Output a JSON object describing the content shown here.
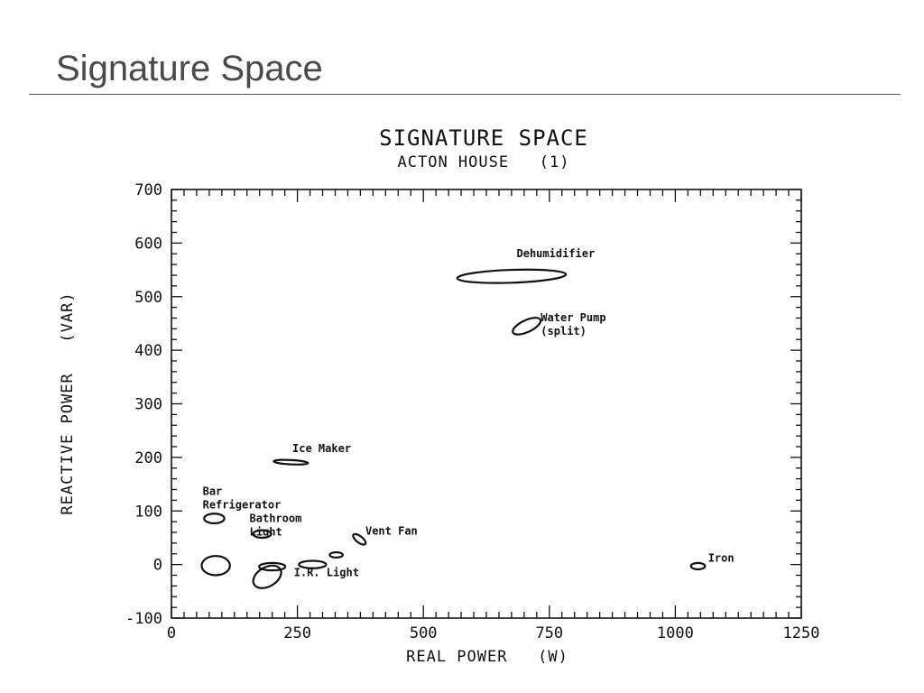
{
  "slide": {
    "title": "Signature Space"
  },
  "chart_data": {
    "type": "scatter",
    "title": "SIGNATURE SPACE",
    "subtitle": "ACTON HOUSE   (1)",
    "xlabel": "REAL POWER   (W)",
    "ylabel": "REACTIVE POWER   (VAR)",
    "xlim": [
      0,
      1250
    ],
    "ylim": [
      -100,
      700
    ],
    "xticks": [
      0,
      250,
      500,
      750,
      1000,
      1250
    ],
    "yticks": [
      -100,
      0,
      100,
      200,
      300,
      400,
      500,
      600,
      700
    ],
    "grid": false,
    "series": [
      {
        "name": "Dehumidifier",
        "x": 675,
        "y": 538,
        "rx": 108,
        "ry": 12,
        "angle": -2
      },
      {
        "name": "Water Pump (split)",
        "x": 705,
        "y": 445,
        "rx": 30,
        "ry": 11,
        "angle": -25
      },
      {
        "name": "Ice Maker",
        "x": 237,
        "y": 191,
        "rx": 34,
        "ry": 4,
        "angle": 3
      },
      {
        "name": "Bar Refrigerator",
        "x": 85,
        "y": 86,
        "rx": 20,
        "ry": 9,
        "angle": 0
      },
      {
        "name": "Bathroom Light",
        "x": 180,
        "y": 57,
        "rx": 18,
        "ry": 7,
        "angle": 0
      },
      {
        "name": "Vent Fan",
        "x": 373,
        "y": 47,
        "rx": 15,
        "ry": 6,
        "angle": 38
      },
      {
        "name": "",
        "x": 327,
        "y": 18,
        "rx": 13,
        "ry": 5,
        "angle": 0
      },
      {
        "name": "",
        "x": 88,
        "y": -2,
        "rx": 28,
        "ry": 18,
        "angle": 0
      },
      {
        "name": "",
        "x": 200,
        "y": -4,
        "rx": 26,
        "ry": 7,
        "angle": 0
      },
      {
        "name": "I.R. Light",
        "x": 280,
        "y": 0,
        "rx": 27,
        "ry": 7,
        "angle": 0
      },
      {
        "name": "",
        "x": 190,
        "y": -23,
        "rx": 30,
        "ry": 18,
        "angle": -30
      },
      {
        "name": "Iron",
        "x": 1045,
        "y": -3,
        "rx": 14,
        "ry": 6,
        "angle": 0
      }
    ],
    "annotations": [
      {
        "lines": [
          "Dehumidifier"
        ],
        "x": 685,
        "y": 574
      },
      {
        "lines": [
          "Water Pump",
          "(split)"
        ],
        "x": 733,
        "y": 454
      },
      {
        "lines": [
          "Ice Maker"
        ],
        "x": 240,
        "y": 210
      },
      {
        "lines": [
          "Bar",
          "Refrigerator"
        ],
        "x": 62,
        "y": 130
      },
      {
        "lines": [
          "Bathroom",
          "Light"
        ],
        "x": 155,
        "y": 79
      },
      {
        "lines": [
          "Vent Fan"
        ],
        "x": 385,
        "y": 56
      },
      {
        "lines": [
          "I.R. Light"
        ],
        "x": 243,
        "y": -22
      },
      {
        "lines": [
          "Iron"
        ],
        "x": 1065,
        "y": 5
      }
    ]
  }
}
